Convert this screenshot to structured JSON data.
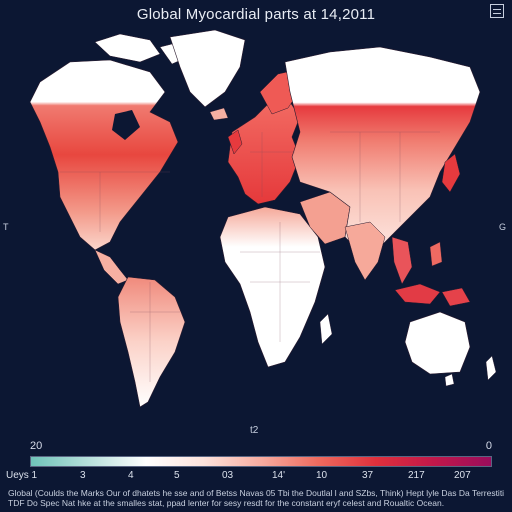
{
  "map": {
    "title": "Global Myocardial parts at 14,2011",
    "left_edge_label": "T",
    "right_edge_label": "G",
    "center_label": "t2",
    "scale_min_label": "20",
    "scale_max_label": "0",
    "legend_prefix": "Ueys 1",
    "legend_ticks": [
      "3",
      "4",
      "5",
      "03",
      "14'",
      "10",
      "37",
      "217",
      "207"
    ],
    "colorbar_stops": [
      "#6fc3b9",
      "#b7e0db",
      "#ffffff",
      "#fde3dc",
      "#f8aca0",
      "#ee6a5e",
      "#e0303c",
      "#c2184a",
      "#9a0d5c"
    ],
    "footnote_line1": "Global (Coulds the Marks Our of dhatets he sse and of Betss Navas 05 Tbi the Doutlal l and SZbs, Think) Hept lyle Das Da Terrestitite",
    "footnote_line2": "TDF Do Spec Nat hke at the smalles stat, ppad lenter for sesy resdt for the constant eryf celest and Roualtic Ocean."
  },
  "colors": {
    "background": "#0c1733",
    "land_light": "#ffffff",
    "land_warm": "#f6a896",
    "land_hot": "#e63a3e",
    "border": "#3a2a40"
  }
}
